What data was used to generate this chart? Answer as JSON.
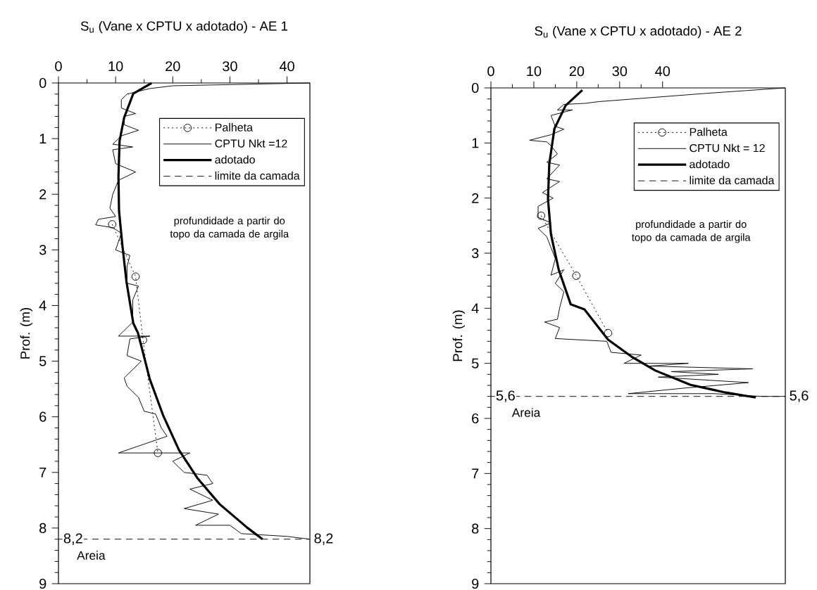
{
  "chart_data": [
    {
      "type": "line",
      "title": "S$_{u}$ (Vane x CPTU x  adotado) - AE 1",
      "ylabel": "Prof. (m)",
      "xlim": [
        0,
        44
      ],
      "xticks": [
        0,
        10,
        20,
        30,
        40
      ],
      "ylim": [
        9,
        0
      ],
      "yticks": [
        0,
        1,
        2,
        3,
        4,
        5,
        6,
        7,
        8,
        9
      ],
      "legend": "top right",
      "series": [
        {
          "name": "Palheta",
          "color": "#000000",
          "marker": "circle",
          "line_style": "dotted",
          "x": [
            9.4,
            13.5,
            14.8,
            17.4
          ],
          "values": [
            2.54,
            3.48,
            4.62,
            6.65
          ]
        },
        {
          "name": "CPTU Nkt =12",
          "color": "#000000",
          "line_style": "solid",
          "x": [
            44,
            20,
            16,
            12,
            11,
            11,
            13.5,
            11.5,
            11.5,
            14,
            11,
            9.5,
            13,
            9.5,
            10,
            13.5,
            10.5,
            9.5,
            9,
            10,
            7,
            6.5,
            9.5,
            11,
            10,
            12.5,
            12,
            12,
            14,
            13,
            13,
            10.5,
            16,
            12.5,
            12,
            14.5,
            11.5,
            12,
            14,
            15,
            17,
            18,
            19,
            10.5,
            23,
            20,
            22,
            26,
            27,
            23,
            27,
            22,
            28,
            24,
            30,
            32,
            40,
            44
          ],
          "values": [
            0.0,
            0.05,
            0.1,
            0.2,
            0.3,
            0.45,
            0.55,
            0.6,
            0.75,
            0.85,
            0.95,
            1.1,
            1.15,
            1.2,
            1.45,
            1.6,
            1.75,
            2.0,
            2.25,
            2.4,
            2.45,
            2.55,
            2.6,
            2.7,
            3.0,
            3.1,
            3.3,
            3.6,
            3.65,
            3.9,
            4.3,
            4.55,
            4.55,
            4.6,
            4.9,
            5.0,
            5.3,
            5.45,
            5.65,
            5.9,
            5.95,
            6.2,
            6.35,
            6.65,
            6.65,
            6.8,
            7.0,
            7.05,
            7.2,
            7.3,
            7.5,
            7.65,
            7.75,
            7.95,
            7.95,
            8.1,
            8.15,
            8.2
          ]
        },
        {
          "name": "adotado",
          "color": "#000000",
          "line_style": "solid",
          "x": [
            16.3,
            13.1,
            11.5,
            10.7,
            10.5,
            10.6,
            11.2,
            11.9,
            13.1,
            13.9,
            16.0,
            18.3,
            21.1,
            24.3,
            28.2,
            33.0,
            35.7
          ],
          "values": [
            0,
            0.19,
            0.62,
            1.04,
            1.67,
            2.3,
            2.93,
            3.57,
            4.32,
            4.49,
            5.33,
            5.97,
            6.6,
            7.1,
            7.57,
            7.99,
            8.2
          ]
        },
        {
          "name": "limite da camada",
          "color": "#000000",
          "line_style": "dashed",
          "x": [
            0,
            44
          ],
          "values": [
            8.2,
            8.2
          ]
        }
      ],
      "annotations": [
        {
          "text": "8,2",
          "x": 0,
          "y": 8.2
        },
        {
          "text": "8,2",
          "x": 44,
          "y": 8.2
        },
        "Areia",
        "profundidade a partir do topo da camada de argila"
      ]
    },
    {
      "type": "line",
      "title": "S$_{u}$ (Vane x CPTU x  adotado) - AE 2",
      "ylabel": "Prof. (m)",
      "xlim": [
        0,
        68.6
      ],
      "xticks": [
        0,
        10,
        20,
        30,
        40
      ],
      "ylim": [
        9,
        0
      ],
      "yticks": [
        0,
        1,
        2,
        3,
        4,
        5,
        6,
        7,
        8,
        9
      ],
      "legend": "top right",
      "series": [
        {
          "name": "Palheta",
          "color": "#000000",
          "marker": "circle",
          "line_style": "dotted",
          "x": [
            11.7,
            19.9,
            27.3
          ],
          "values": [
            2.32,
            3.41,
            4.45
          ]
        },
        {
          "name": "CPTU Nkt = 12",
          "color": "#000000",
          "line_style": "solid",
          "x": [
            68.5,
            50,
            25,
            22,
            17,
            15.5,
            19,
            14,
            15,
            17,
            14,
            9,
            13,
            14,
            15.5,
            13,
            16,
            13,
            16,
            12,
            14.5,
            11,
            11,
            14,
            11,
            13,
            14,
            15,
            14,
            17,
            15,
            17,
            16,
            15.5,
            12.5,
            16,
            15,
            27,
            28,
            35,
            31,
            46,
            37,
            61,
            42,
            53,
            39,
            60,
            45,
            32,
            52,
            63,
            68.5
          ],
          "values": [
            0.0,
            0.1,
            0.25,
            0.28,
            0.3,
            0.4,
            0.4,
            0.5,
            0.7,
            0.75,
            0.85,
            0.95,
            0.98,
            1.05,
            1.2,
            1.35,
            1.4,
            1.65,
            1.7,
            1.9,
            2.0,
            2.15,
            2.35,
            2.45,
            2.55,
            2.7,
            2.9,
            3.1,
            3.4,
            3.3,
            3.55,
            3.7,
            4.0,
            4.2,
            4.25,
            4.35,
            4.55,
            4.6,
            4.8,
            4.85,
            5.0,
            5.0,
            5.05,
            5.1,
            5.15,
            5.2,
            5.25,
            5.35,
            5.45,
            5.55,
            5.55,
            5.6,
            5.6
          ]
        },
        {
          "name": "adotado",
          "color": "#000000",
          "line_style": "solid",
          "x": [
            21.3,
            17.4,
            14.8,
            13.6,
            13.3,
            14.0,
            15.8,
            18.6,
            21.8,
            27.3,
            32.8,
            38.3,
            46.5,
            54.7,
            61.7
          ],
          "values": [
            0.04,
            0.32,
            0.74,
            1.38,
            2.02,
            2.66,
            3.3,
            3.93,
            4.02,
            4.57,
            4.88,
            5.13,
            5.39,
            5.53,
            5.62
          ]
        },
        {
          "name": "limite da camada",
          "color": "#000000",
          "line_style": "dashed",
          "x": [
            0,
            68.6
          ],
          "values": [
            5.6,
            5.6
          ]
        }
      ],
      "annotations": [
        {
          "text": "5,6",
          "x": 0,
          "y": 5.6
        },
        {
          "text": "5,6",
          "x": 68.6,
          "y": 5.6
        },
        "Areia",
        "profundidade a partir do topo da camada de argila"
      ]
    }
  ]
}
